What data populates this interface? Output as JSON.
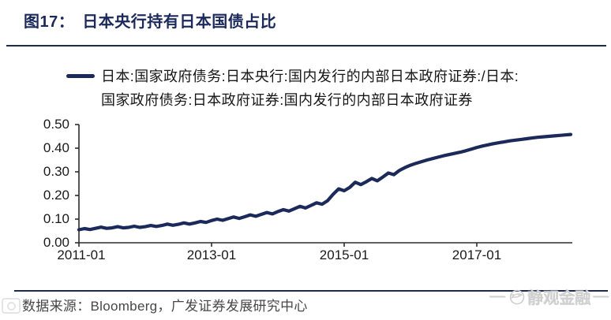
{
  "header": {
    "figure_label": "图17：",
    "title": "日本央行持有日本国债占比"
  },
  "legend": {
    "line1": "日本:国家政府债务:日本央行:国内发行的内部日本政府证券:/日本:",
    "line2": "国家政府债务:日本政府证券:国内发行的内部日本政府证券"
  },
  "footer": {
    "source_text": "数据来源：Bloomberg，广发证券发展研究中心",
    "watermark_brand": "静观金融",
    "watermark_dash": "—"
  },
  "colors": {
    "line": "#1b2a5a",
    "title": "#1b2a5a",
    "separator": "#1f2b4d",
    "axis": "#2b2b2b",
    "tick_label": "#1a1a1a",
    "watermark": "#cfcfcf"
  },
  "chart_data": {
    "type": "line",
    "title": "图17：日本央行持有日本国债占比",
    "xlabel": "",
    "ylabel": "",
    "grid": false,
    "legend_position": "top",
    "ylim": [
      0.0,
      0.5
    ],
    "y_ticks": [
      0.0,
      0.1,
      0.2,
      0.3,
      0.4,
      0.5
    ],
    "y_tick_labels": [
      "0.00",
      "0.10",
      "0.20",
      "0.30",
      "0.40",
      "0.50"
    ],
    "x_tick_labels": [
      "2011-01",
      "2013-01",
      "2015-01",
      "2017-01"
    ],
    "x_start": "2011-01",
    "x_end": "2018-06",
    "x_frequency": "monthly",
    "series": [
      {
        "name": "日本:国家政府债务:日本央行:国内发行的内部日本政府证券:/日本:国家政府债务:日本政府证券:国内发行的内部日本政府证券",
        "values": [
          0.055,
          0.06,
          0.056,
          0.061,
          0.066,
          0.061,
          0.063,
          0.068,
          0.063,
          0.065,
          0.07,
          0.065,
          0.068,
          0.073,
          0.069,
          0.073,
          0.079,
          0.074,
          0.078,
          0.084,
          0.079,
          0.084,
          0.09,
          0.086,
          0.094,
          0.1,
          0.095,
          0.102,
          0.109,
          0.103,
          0.11,
          0.118,
          0.112,
          0.12,
          0.128,
          0.122,
          0.132,
          0.14,
          0.134,
          0.144,
          0.154,
          0.147,
          0.158,
          0.169,
          0.163,
          0.178,
          0.205,
          0.228,
          0.22,
          0.234,
          0.256,
          0.246,
          0.258,
          0.272,
          0.262,
          0.278,
          0.295,
          0.288,
          0.306,
          0.318,
          0.328,
          0.336,
          0.343,
          0.35,
          0.356,
          0.362,
          0.368,
          0.373,
          0.378,
          0.383,
          0.389,
          0.396,
          0.403,
          0.409,
          0.414,
          0.419,
          0.423,
          0.427,
          0.431,
          0.434,
          0.437,
          0.44,
          0.443,
          0.446,
          0.448,
          0.45,
          0.452,
          0.454,
          0.456,
          0.458
        ]
      }
    ]
  }
}
